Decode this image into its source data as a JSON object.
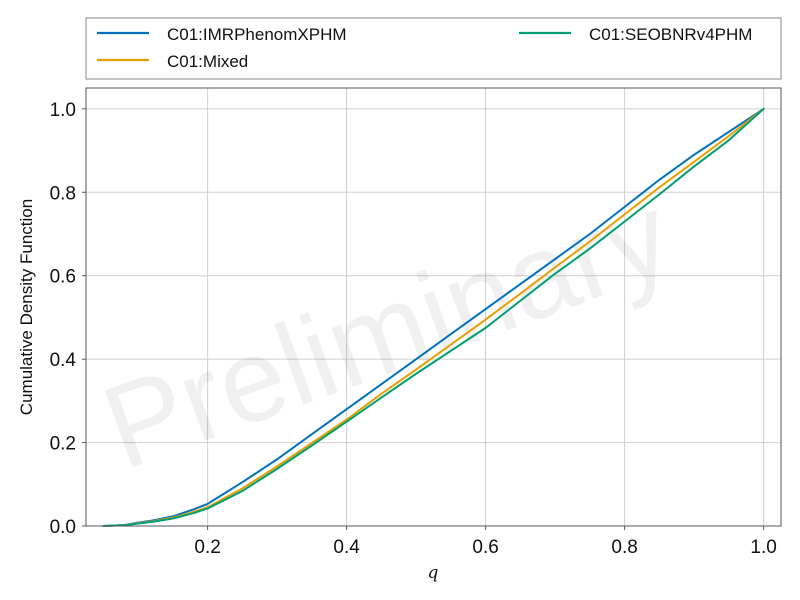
{
  "chart_data": {
    "type": "line",
    "title": "",
    "xlabel": "q",
    "ylabel": "Cumulative Density Function",
    "xlim": [
      0.025,
      1.025
    ],
    "ylim": [
      0.0,
      1.05
    ],
    "xticks": [
      0.2,
      0.4,
      0.6,
      0.8,
      1.0
    ],
    "xtick_labels": [
      "0.2",
      "0.4",
      "0.6",
      "0.8",
      "1.0"
    ],
    "yticks": [
      0.0,
      0.2,
      0.4,
      0.6,
      0.8,
      1.0
    ],
    "ytick_labels": [
      "0.0",
      "0.2",
      "0.4",
      "0.6",
      "0.8",
      "1.0"
    ],
    "grid": true,
    "legend_position": "top (above plot), two columns",
    "watermark": "Preliminary",
    "series": [
      {
        "name": "C01:IMRPhenomXPHM",
        "color": "#0072bd",
        "x": [
          0.05,
          0.08,
          0.1,
          0.12,
          0.15,
          0.18,
          0.2,
          0.25,
          0.3,
          0.35,
          0.4,
          0.45,
          0.5,
          0.55,
          0.6,
          0.65,
          0.7,
          0.75,
          0.8,
          0.85,
          0.9,
          0.95,
          1.0
        ],
        "values": [
          0.0,
          0.002,
          0.008,
          0.013,
          0.023,
          0.04,
          0.053,
          0.105,
          0.16,
          0.22,
          0.28,
          0.34,
          0.4,
          0.46,
          0.52,
          0.58,
          0.64,
          0.7,
          0.765,
          0.83,
          0.89,
          0.945,
          1.0
        ]
      },
      {
        "name": "C01:Mixed",
        "color": "#e69f00",
        "x": [
          0.05,
          0.08,
          0.1,
          0.12,
          0.15,
          0.18,
          0.2,
          0.25,
          0.3,
          0.35,
          0.4,
          0.45,
          0.5,
          0.55,
          0.6,
          0.65,
          0.7,
          0.75,
          0.8,
          0.85,
          0.9,
          0.95,
          1.0
        ],
        "values": [
          0.0,
          0.002,
          0.007,
          0.011,
          0.02,
          0.034,
          0.045,
          0.09,
          0.143,
          0.199,
          0.255,
          0.317,
          0.375,
          0.435,
          0.495,
          0.557,
          0.62,
          0.682,
          0.747,
          0.812,
          0.873,
          0.935,
          1.0
        ]
      },
      {
        "name": "C01:SEOBNRv4PHM",
        "color": "#009e73",
        "x": [
          0.05,
          0.08,
          0.1,
          0.12,
          0.15,
          0.18,
          0.2,
          0.25,
          0.3,
          0.35,
          0.4,
          0.45,
          0.5,
          0.55,
          0.6,
          0.65,
          0.7,
          0.75,
          0.8,
          0.85,
          0.9,
          0.95,
          1.0
        ],
        "values": [
          0.0,
          0.002,
          0.006,
          0.01,
          0.018,
          0.031,
          0.042,
          0.084,
          0.137,
          0.193,
          0.25,
          0.308,
          0.365,
          0.42,
          0.475,
          0.54,
          0.605,
          0.665,
          0.73,
          0.795,
          0.862,
          0.925,
          1.0
        ]
      }
    ]
  }
}
